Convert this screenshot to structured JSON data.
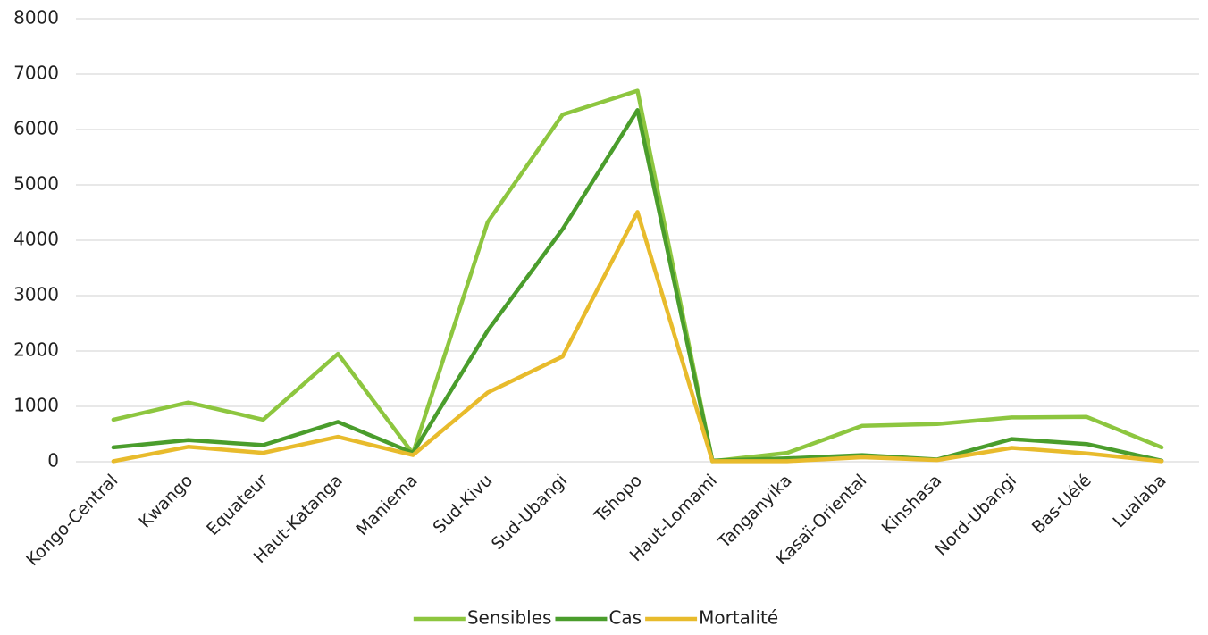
{
  "chart_data": {
    "type": "line",
    "title": "",
    "xlabel": "",
    "ylabel": "",
    "ylim": [
      0,
      8000
    ],
    "yticks": [
      "0",
      "1000",
      "2000",
      "3000",
      "4000",
      "5000",
      "6000",
      "7000",
      "8000"
    ],
    "grid": true,
    "legend_position": "bottom",
    "categories": [
      "Kongo-Central",
      "Kwango",
      "Equateur",
      "Haut-Katanga",
      "Maniema",
      "Sud-Kivu",
      "Sud-Ubangi",
      "Tshopo",
      "Haut-Lomami",
      "Tanganyika",
      "Kasaï-Oriental",
      "Kinshasa",
      "Nord-Ubangi",
      "Bas-Uélé",
      "Lualaba"
    ],
    "series": [
      {
        "name": "Sensibles",
        "color": "#8dc63f",
        "values": [
          760,
          1070,
          760,
          1950,
          150,
          4330,
          6270,
          6700,
          10,
          160,
          650,
          680,
          800,
          810,
          260
        ]
      },
      {
        "name": "Cas",
        "color": "#4a9d2c",
        "values": [
          260,
          390,
          300,
          720,
          160,
          2370,
          4200,
          6350,
          20,
          60,
          120,
          40,
          410,
          320,
          20
        ]
      },
      {
        "name": "Mortalité",
        "color": "#e8bb2c",
        "values": [
          10,
          270,
          160,
          450,
          120,
          1250,
          1900,
          4510,
          10,
          10,
          80,
          30,
          250,
          150,
          10
        ]
      }
    ]
  }
}
